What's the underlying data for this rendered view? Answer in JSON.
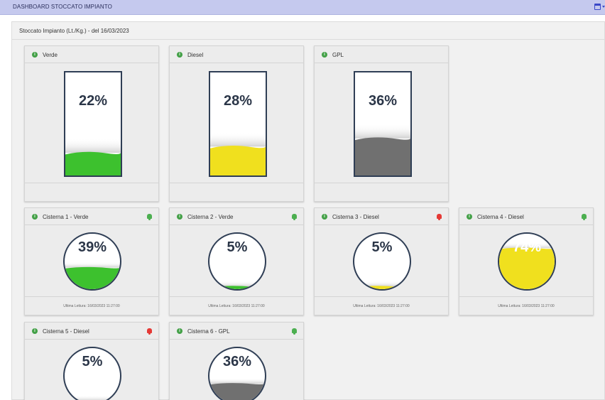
{
  "header": {
    "title": "DASHBOARD STOCCATO IMPIANTO",
    "calendar_icon": "calendar-icon"
  },
  "panel": {
    "title": "Stoccato Impianto (Lt./Kg.) - del 16/03/2023"
  },
  "colors": {
    "verde": "#3dc12e",
    "diesel": "#f0e01e",
    "gpl": "#707070",
    "alert_ok": "#4caf50",
    "alert_bad": "#e53935"
  },
  "totals": [
    {
      "title": "Verde",
      "percent_label": "22%",
      "level": 0.22,
      "fuel": "verde"
    },
    {
      "title": "Diesel",
      "percent_label": "28%",
      "level": 0.28,
      "fuel": "diesel"
    },
    {
      "title": "GPL",
      "percent_label": "36%",
      "level": 0.36,
      "fuel": "gpl"
    }
  ],
  "cisterns": [
    {
      "title": "Cisterna 1 - Verde",
      "percent_label": "39%",
      "level": 0.39,
      "fuel": "verde",
      "alarm": "ok",
      "footer": "Ultima Lettura: 16/03/2023 11:27:00"
    },
    {
      "title": "Cisterna 2 - Verde",
      "percent_label": "5%",
      "level": 0.05,
      "fuel": "verde",
      "alarm": "ok",
      "footer": "Ultima Lettura: 16/03/2023 11:27:00"
    },
    {
      "title": "Cisterna 3 - Diesel",
      "percent_label": "5%",
      "level": 0.05,
      "fuel": "diesel",
      "alarm": "bad",
      "footer": "Ultima Lettura: 16/03/2023 11:27:00"
    },
    {
      "title": "Cisterna 4 - Diesel",
      "percent_label": "74%",
      "level": 0.74,
      "fuel": "diesel",
      "alarm": "ok",
      "footer": "Ultima Lettura: 16/03/2023 11:27:00"
    },
    {
      "title": "Cisterna 5 - Diesel",
      "percent_label": "5%",
      "level": 0.05,
      "fuel": "diesel",
      "alarm": "bad",
      "footer": ""
    },
    {
      "title": "Cisterna 6 - GPL",
      "percent_label": "36%",
      "level": 0.36,
      "fuel": "gpl",
      "alarm": "ok",
      "footer": ""
    }
  ]
}
